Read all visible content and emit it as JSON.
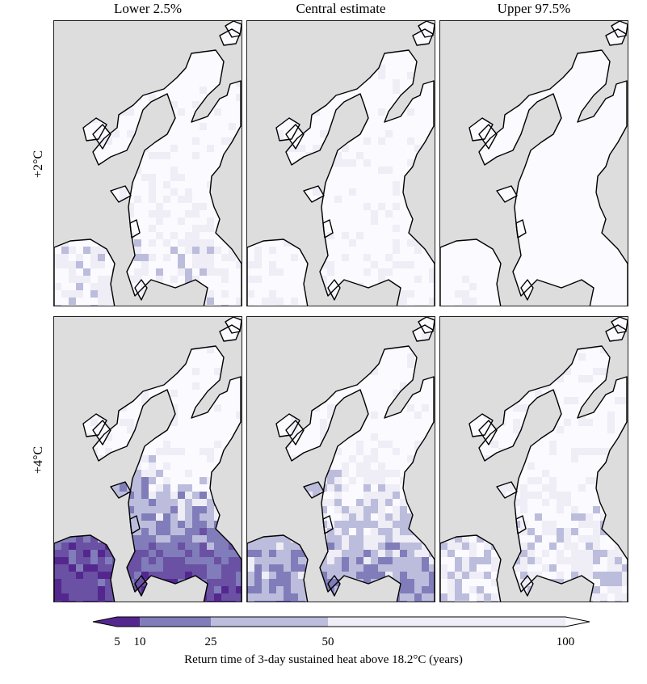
{
  "chart_data": {
    "type": "heatmap",
    "title": "",
    "columns": [
      "Lower 2.5%",
      "Central estimate",
      "Upper 97.5%"
    ],
    "rows": [
      "+2°C",
      "+4°C"
    ],
    "colorbar": {
      "label": "Return time of 3-day sustained heat above 18.2°C (years)",
      "ticks": [
        "5",
        "10",
        "25",
        "50",
        "100"
      ],
      "tick_values": [
        5,
        10,
        25,
        50,
        100
      ],
      "colors": [
        "#54278f",
        "#6a51a3",
        "#807dba",
        "#bcbddc",
        "#efedf5",
        "#fbfaff"
      ],
      "extend": "both"
    },
    "panels": [
      {
        "row": "+2°C",
        "column": "Lower 2.5%",
        "level": 0.15
      },
      {
        "row": "+2°C",
        "column": "Central estimate",
        "level": 0.05
      },
      {
        "row": "+2°C",
        "column": "Upper 97.5%",
        "level": 0.0
      },
      {
        "row": "+4°C",
        "column": "Lower 2.5%",
        "level": 0.9
      },
      {
        "row": "+4°C",
        "column": "Central estimate",
        "level": 0.5
      },
      {
        "row": "+4°C",
        "column": "Upper 97.5%",
        "level": 0.25
      }
    ]
  }
}
